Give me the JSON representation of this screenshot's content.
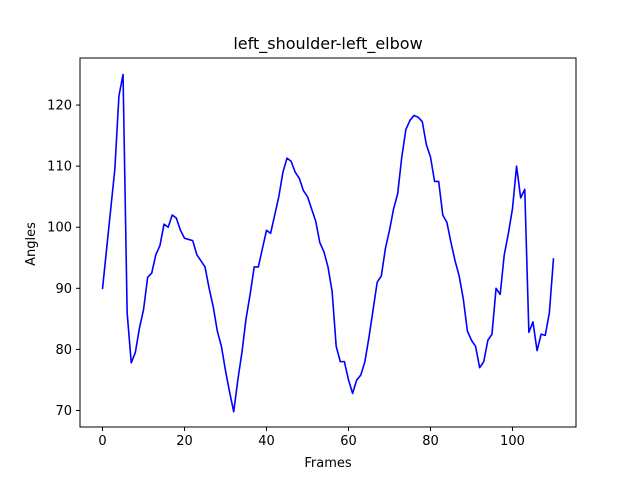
{
  "chart_data": {
    "type": "line",
    "title": "left_shoulder-left_elbow",
    "xlabel": "Frames",
    "ylabel": "Angles",
    "xlim": [
      -5.5,
      115.5
    ],
    "ylim": [
      67.3,
      127.7
    ],
    "xticks": [
      0,
      20,
      40,
      60,
      80,
      100
    ],
    "yticks": [
      70,
      80,
      90,
      100,
      110,
      120
    ],
    "grid": false,
    "line_color": "#0000ff",
    "series": [
      {
        "x": [
          0,
          1,
          2,
          3,
          4,
          5,
          6,
          7,
          8,
          9,
          10,
          11,
          12,
          13,
          14,
          15,
          16,
          17,
          18,
          19,
          20,
          21,
          22,
          23,
          24,
          25,
          26,
          27,
          28,
          29,
          30,
          31,
          32,
          33,
          34,
          35,
          36,
          37,
          38,
          39,
          40,
          41,
          42,
          43,
          44,
          45,
          46,
          47,
          48,
          49,
          50,
          51,
          52,
          53,
          54,
          55,
          56,
          57,
          58,
          59,
          60,
          61,
          62,
          63,
          64,
          65,
          66,
          67,
          68,
          69,
          70,
          71,
          72,
          73,
          74,
          75,
          76,
          77,
          78,
          79,
          80,
          81,
          82,
          83,
          84,
          85,
          86,
          87,
          88,
          89,
          90,
          91,
          92,
          93,
          94,
          95,
          96,
          97,
          98,
          99,
          100,
          101,
          102,
          103,
          104,
          105,
          106,
          107,
          108,
          109,
          110
        ],
        "values": [
          90.0,
          96.5,
          103.0,
          109.5,
          121.5,
          125.0,
          86.0,
          77.8,
          79.5,
          83.5,
          86.5,
          91.8,
          92.5,
          95.5,
          97.0,
          100.5,
          100.0,
          102.0,
          101.5,
          99.5,
          98.2,
          98.0,
          97.8,
          95.5,
          94.5,
          93.5,
          90.0,
          87.0,
          83.0,
          80.5,
          76.5,
          73.0,
          69.8,
          75.0,
          79.5,
          85.0,
          89.0,
          93.5,
          93.5,
          96.5,
          99.5,
          99.0,
          102.0,
          105.0,
          109.0,
          111.3,
          110.8,
          109.0,
          108.0,
          106.0,
          105.0,
          103.0,
          101.0,
          97.5,
          96.0,
          93.5,
          89.5,
          80.5,
          78.0,
          78.0,
          75.0,
          72.8,
          75.0,
          75.8,
          78.0,
          82.0,
          86.5,
          91.0,
          92.0,
          96.5,
          99.5,
          103.0,
          105.5,
          111.5,
          116.0,
          117.5,
          118.3,
          118.0,
          117.3,
          113.5,
          111.5,
          107.5,
          107.5,
          102.0,
          100.8,
          97.5,
          94.5,
          92.0,
          88.3,
          83.0,
          81.5,
          80.5,
          77.0,
          78.0,
          81.5,
          82.5,
          90.0,
          89.0,
          95.5,
          99.0,
          103.0,
          110.0,
          104.8,
          106.2,
          82.8,
          84.5,
          79.8,
          82.5,
          82.3,
          86.0,
          94.8
        ]
      }
    ]
  }
}
